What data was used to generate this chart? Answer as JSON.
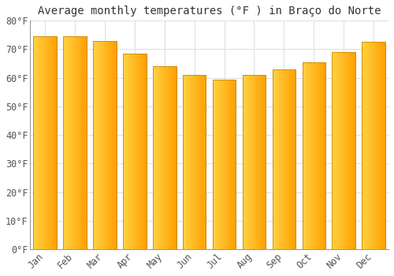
{
  "title": "Average monthly temperatures (°F ) in Braço do Norte",
  "months": [
    "Jan",
    "Feb",
    "Mar",
    "Apr",
    "May",
    "Jun",
    "Jul",
    "Aug",
    "Sep",
    "Oct",
    "Nov",
    "Dec"
  ],
  "values": [
    74.5,
    74.5,
    73.0,
    68.5,
    64.0,
    61.0,
    59.5,
    61.0,
    63.0,
    65.5,
    69.0,
    72.5
  ],
  "bar_color_left": "#FFD040",
  "bar_color_right": "#FFA000",
  "bar_edge_color": "#CC8800",
  "background_color": "#FFFFFF",
  "grid_color": "#DDDDDD",
  "ylim": [
    0,
    80
  ],
  "yticks": [
    0,
    10,
    20,
    30,
    40,
    50,
    60,
    70,
    80
  ],
  "ytick_labels": [
    "0°F",
    "10°F",
    "20°F",
    "30°F",
    "40°F",
    "50°F",
    "60°F",
    "70°F",
    "80°F"
  ],
  "title_fontsize": 10,
  "tick_fontsize": 8.5,
  "font_family": "monospace"
}
